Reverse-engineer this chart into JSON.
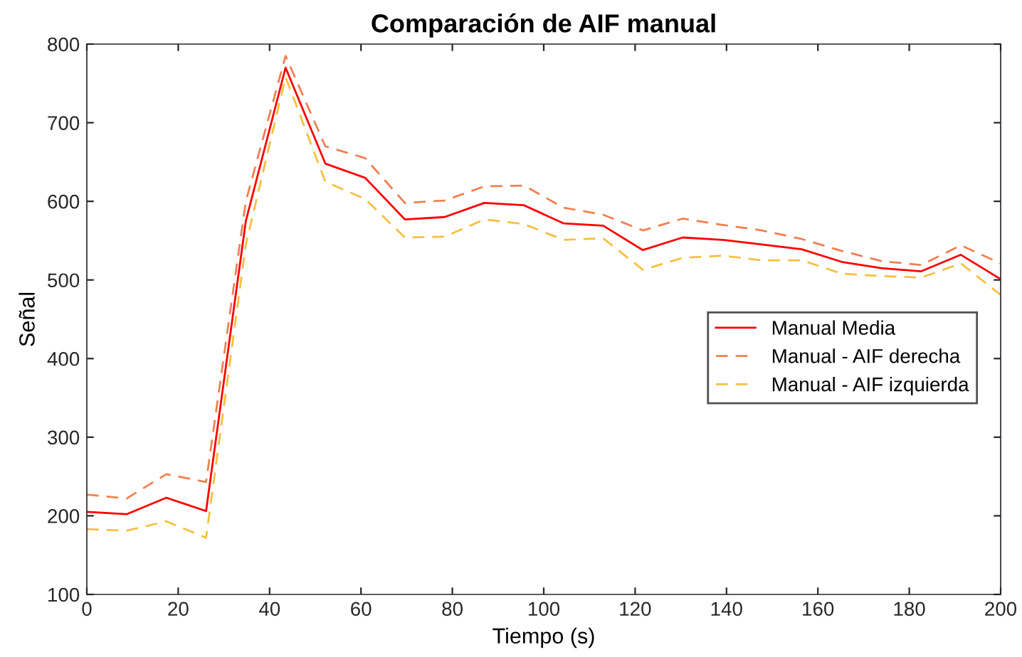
{
  "chart_data": {
    "type": "line",
    "title": "Comparación de AIF manual",
    "xlabel": "Tiempo (s)",
    "ylabel": "Señal",
    "x": [
      0,
      8.7,
      17.4,
      26.1,
      34.8,
      43.5,
      52.2,
      60.9,
      69.6,
      78.3,
      87.0,
      95.7,
      104.3,
      113.0,
      121.7,
      130.4,
      139.1,
      147.8,
      156.5,
      165.2,
      173.9,
      182.6,
      191.3,
      200
    ],
    "series": [
      {
        "name": "Manual Media",
        "color": "#ff0000",
        "line_style": "solid",
        "values": [
          205,
          202,
          223,
          206,
          575,
          770,
          648,
          630,
          577,
          580,
          598,
          595,
          572,
          569,
          538,
          554,
          551,
          545,
          539,
          523,
          515,
          511,
          532,
          501
        ]
      },
      {
        "name": "Manual - AIF derecha",
        "color": "#f08050",
        "line_style": "dashed",
        "values": [
          227,
          222,
          253,
          243,
          600,
          785,
          670,
          655,
          598,
          601,
          619,
          620,
          592,
          583,
          563,
          578,
          570,
          563,
          552,
          537,
          524,
          519,
          544,
          521
        ]
      },
      {
        "name": "Manual - AIF izquierda",
        "color": "#f5c040",
        "line_style": "dashed",
        "values": [
          183,
          181,
          193,
          172,
          545,
          758,
          625,
          603,
          554,
          555,
          577,
          571,
          551,
          553,
          513,
          528,
          531,
          525,
          525,
          508,
          505,
          503,
          521,
          481
        ]
      }
    ],
    "xlim": [
      0,
      200
    ],
    "ylim": [
      100,
      800
    ],
    "xticks": [
      0,
      20,
      40,
      60,
      80,
      100,
      120,
      140,
      160,
      180,
      200
    ],
    "yticks": [
      100,
      200,
      300,
      400,
      500,
      600,
      700,
      800
    ],
    "grid": false,
    "legend": "right",
    "marker": "none"
  }
}
